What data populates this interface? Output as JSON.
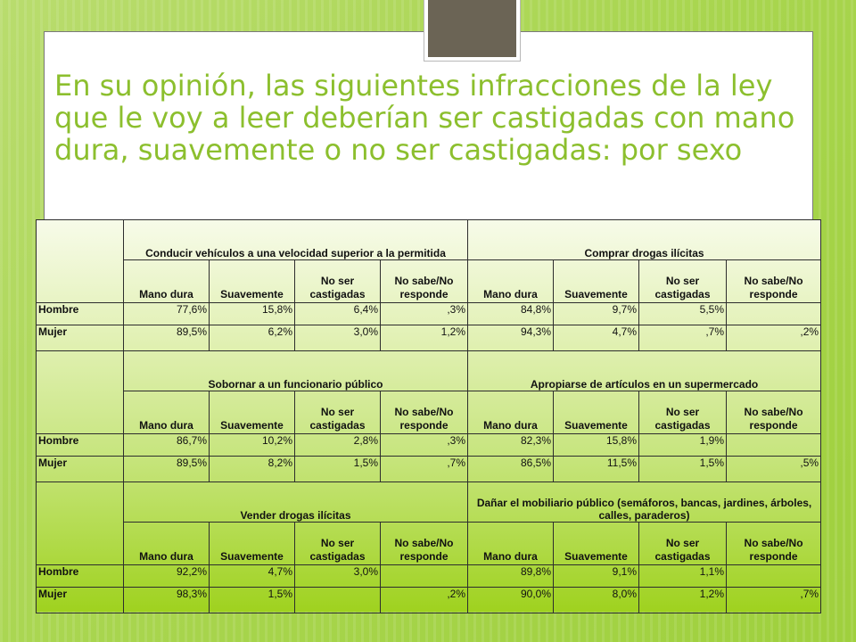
{
  "title": "En su opinión, las siguientes infracciones de la ley que le voy a leer deberían ser castigadas con mano dura, suavemente o no ser castigadas: por sexo",
  "column_headers": [
    "Mano dura",
    "Suavemente",
    "No ser castigadas",
    "No sabe/No responde"
  ],
  "blocks": [
    {
      "group_left": "Conducir vehículos a una velocidad superior a la permitida",
      "group_right": "Comprar drogas ilícitas",
      "rows": [
        {
          "label": "Hombre",
          "values": [
            "77,6%",
            "15,8%",
            "6,4%",
            ",3%",
            "84,8%",
            "9,7%",
            "5,5%",
            ""
          ]
        },
        {
          "label": "Mujer",
          "values": [
            "89,5%",
            "6,2%",
            "3,0%",
            "1,2%",
            "94,3%",
            "4,7%",
            ",7%",
            ",2%"
          ]
        }
      ]
    },
    {
      "group_left": "Sobornar a un funcionario público",
      "group_right": "Apropiarse de artículos en un supermercado",
      "rows": [
        {
          "label": "Hombre",
          "values": [
            "86,7%",
            "10,2%",
            "2,8%",
            ",3%",
            "82,3%",
            "15,8%",
            "1,9%",
            ""
          ]
        },
        {
          "label": "Mujer",
          "values": [
            "89,5%",
            "8,2%",
            "1,5%",
            ",7%",
            "86,5%",
            "11,5%",
            "1,5%",
            ",5%"
          ]
        }
      ]
    },
    {
      "group_left": "Vender drogas ilícitas",
      "group_right": "Dañar el mobiliario público (semáforos, bancas, jardines, árboles, calles, paraderos)",
      "rows": [
        {
          "label": "Hombre",
          "values": [
            "92,2%",
            "4,7%",
            "3,0%",
            "",
            "89,8%",
            "9,1%",
            "1,1%",
            ""
          ]
        },
        {
          "label": "Mujer",
          "values": [
            "98,3%",
            "1,5%",
            "",
            ",2%",
            "90,0%",
            "8,0%",
            "1,2%",
            ",7%"
          ]
        }
      ]
    }
  ]
}
